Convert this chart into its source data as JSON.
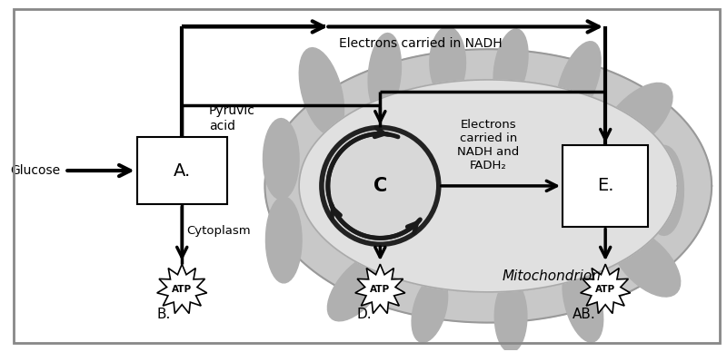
{
  "bg_color": "#ffffff",
  "box_color": "#ffffff",
  "box_edge": "#000000",
  "mito_outer_fill": "#c8c8c8",
  "mito_inner_fill": "#e0e0e0",
  "cristae_fill": "#b0b0b0",
  "cycle_circle_fill": "#d8d8d8",
  "cycle_circle_edge": "#222222",
  "text_electrons_nadh": "Electrons carried in NADH",
  "text_electrons_nadh_fadh2": "Electrons\ncarried in\nNADH and\nFADH₂",
  "text_pyruvic": "Pyruvic\nacid",
  "text_cytoplasm": "Cytoplasm",
  "text_mitochondrion": "Mitochondrion",
  "text_glucose": "Glucose",
  "label_A": "A.",
  "label_B": "B.",
  "label_C": "C",
  "label_D": "D.",
  "label_E": "E.",
  "label_AB": "AB.",
  "label_ATP": "ATP",
  "border_color": "#888888"
}
